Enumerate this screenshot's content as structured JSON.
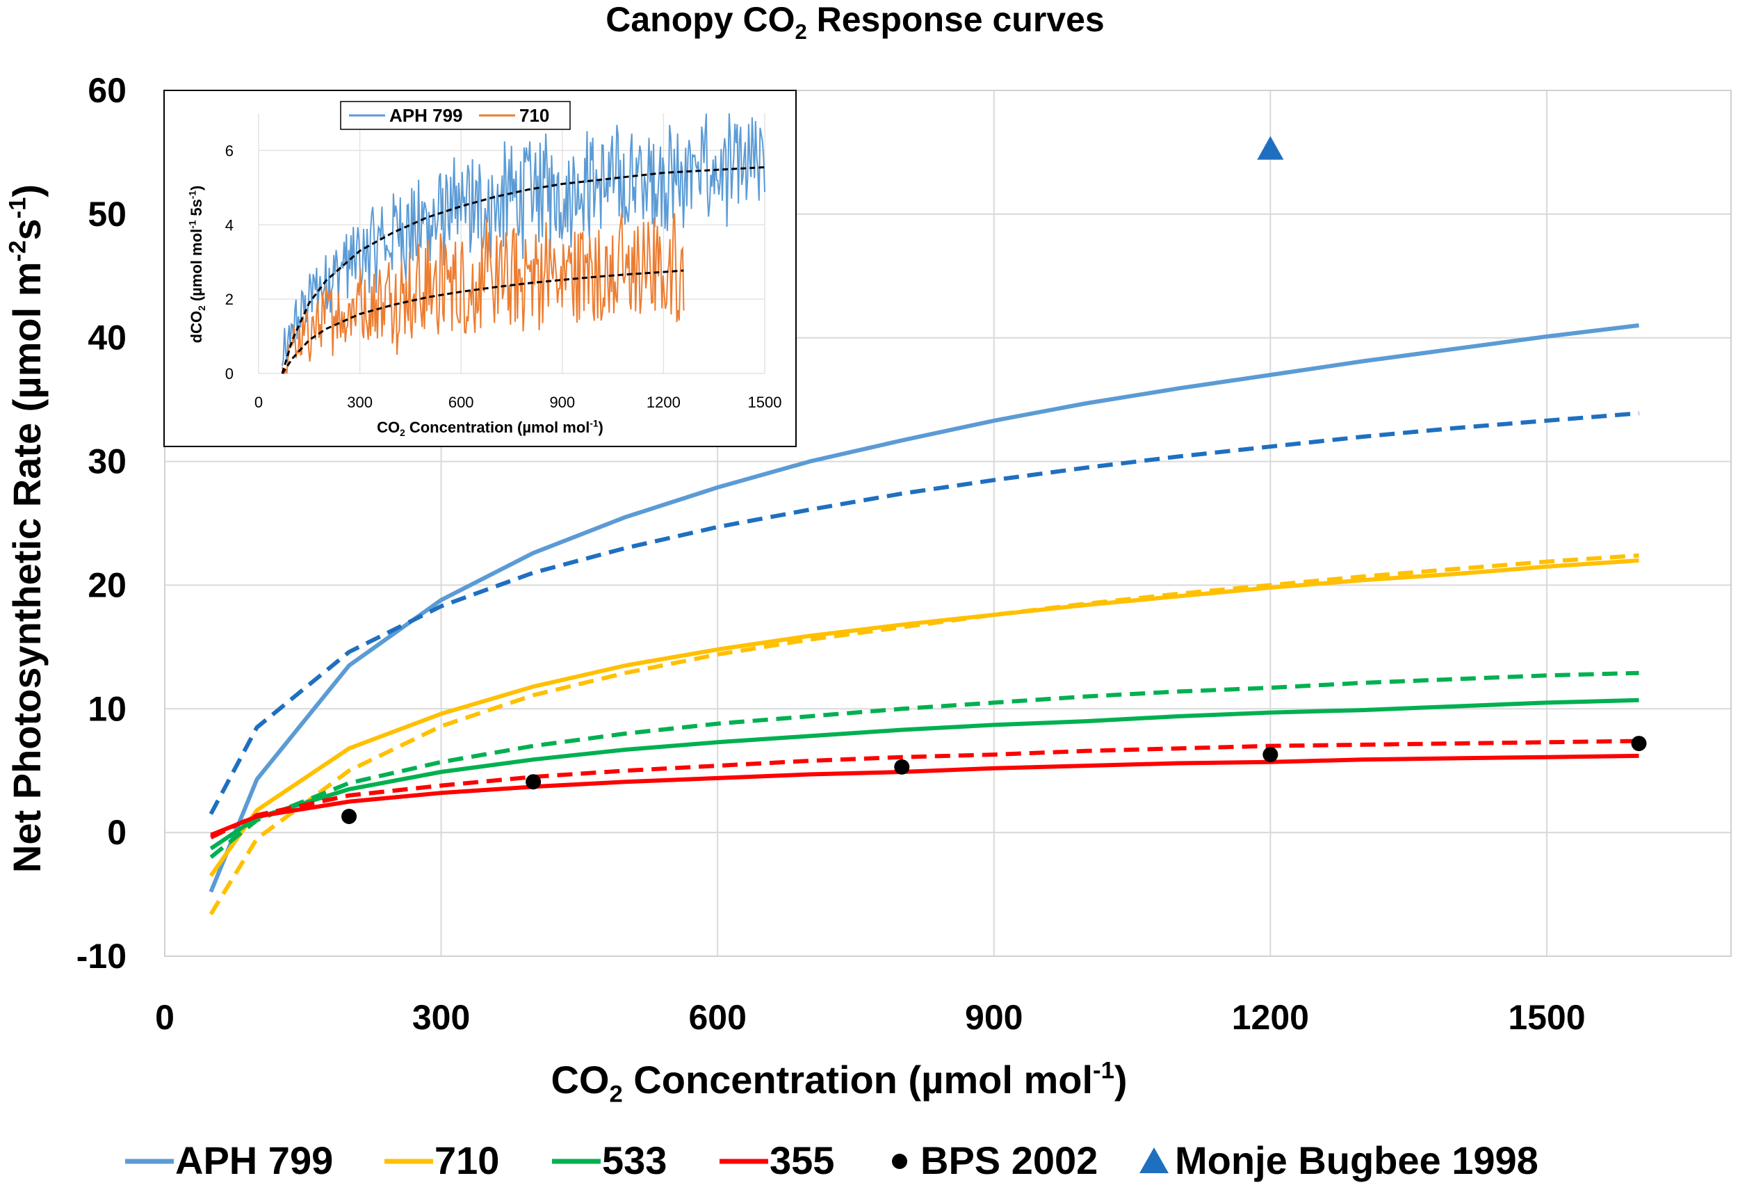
{
  "chart_data": [
    {
      "type": "line",
      "title": "Canopy CO₂ Response curves",
      "xlabel": "CO₂ Concentration (µmol mol⁻¹)",
      "ylabel": "Net Photosynthetic Rate (µmol m⁻²s⁻¹)",
      "xlim": [
        0,
        1700
      ],
      "ylim": [
        -10,
        60
      ],
      "xticks": [
        "0",
        "300",
        "600",
        "900",
        "1200",
        "1500"
      ],
      "yticks": [
        "-10",
        "0",
        "10",
        "20",
        "30",
        "40",
        "50",
        "60"
      ],
      "grid": true,
      "legend_position": "bottom",
      "series": [
        {
          "name": "APH 799",
          "style": "solid",
          "color": "#5b9bd5",
          "show_in_legend": true,
          "x": [
            50,
            100,
            200,
            300,
            400,
            500,
            600,
            700,
            800,
            900,
            1000,
            1100,
            1200,
            1300,
            1400,
            1500,
            1600
          ],
          "y": [
            -4.8,
            4.3,
            13.5,
            18.8,
            22.6,
            25.5,
            27.9,
            30.0,
            31.7,
            33.3,
            34.7,
            35.9,
            37.0,
            38.1,
            39.1,
            40.1,
            41.0
          ]
        },
        {
          "name": "APH 799 model",
          "style": "dashed",
          "color": "#1f6fc0",
          "show_in_legend": false,
          "x": [
            50,
            100,
            200,
            300,
            400,
            500,
            600,
            700,
            800,
            900,
            1000,
            1100,
            1200,
            1300,
            1400,
            1500,
            1600
          ],
          "y": [
            1.5,
            8.5,
            14.6,
            18.3,
            21.0,
            23.0,
            24.7,
            26.1,
            27.4,
            28.5,
            29.5,
            30.4,
            31.2,
            32.0,
            32.7,
            33.3,
            33.9
          ]
        },
        {
          "name": "710",
          "style": "solid",
          "color": "#ffc000",
          "show_in_legend": true,
          "x": [
            50,
            100,
            200,
            300,
            400,
            500,
            600,
            700,
            800,
            900,
            1000,
            1100,
            1200,
            1300,
            1400,
            1500,
            1600
          ],
          "y": [
            -3.5,
            1.8,
            6.8,
            9.6,
            11.8,
            13.5,
            14.8,
            15.9,
            16.8,
            17.6,
            18.4,
            19.1,
            19.8,
            20.4,
            20.9,
            21.5,
            22.0
          ]
        },
        {
          "name": "710 model",
          "style": "dashed",
          "color": "#ffc000",
          "show_in_legend": false,
          "x": [
            50,
            100,
            200,
            300,
            400,
            500,
            600,
            700,
            800,
            900,
            1000,
            1100,
            1200,
            1300,
            1400,
            1500,
            1600
          ],
          "y": [
            -6.6,
            -0.5,
            5.0,
            8.6,
            11.1,
            12.9,
            14.4,
            15.6,
            16.6,
            17.6,
            18.5,
            19.3,
            20.0,
            20.7,
            21.3,
            21.9,
            22.4
          ]
        },
        {
          "name": "533",
          "style": "solid",
          "color": "#00b050",
          "show_in_legend": true,
          "x": [
            50,
            100,
            200,
            300,
            400,
            500,
            600,
            700,
            800,
            900,
            1000,
            1100,
            1200,
            1300,
            1400,
            1500,
            1600
          ],
          "y": [
            -1.3,
            1.2,
            3.5,
            4.9,
            5.9,
            6.7,
            7.3,
            7.8,
            8.3,
            8.7,
            9.0,
            9.4,
            9.7,
            9.9,
            10.2,
            10.5,
            10.7
          ]
        },
        {
          "name": "533 model",
          "style": "dashed",
          "color": "#00b050",
          "show_in_legend": false,
          "x": [
            50,
            100,
            200,
            300,
            400,
            500,
            600,
            700,
            800,
            900,
            1000,
            1100,
            1200,
            1300,
            1400,
            1500,
            1600
          ],
          "y": [
            -2.0,
            1.0,
            4.0,
            5.7,
            7.0,
            8.0,
            8.8,
            9.4,
            10.0,
            10.5,
            11.0,
            11.4,
            11.7,
            12.1,
            12.4,
            12.7,
            12.9
          ]
        },
        {
          "name": "355",
          "style": "solid",
          "color": "#ff0000",
          "show_in_legend": true,
          "x": [
            50,
            100,
            200,
            300,
            400,
            500,
            600,
            700,
            800,
            900,
            1000,
            1100,
            1200,
            1300,
            1400,
            1500,
            1600
          ],
          "y": [
            -0.2,
            1.3,
            2.5,
            3.2,
            3.7,
            4.1,
            4.4,
            4.7,
            4.9,
            5.2,
            5.4,
            5.6,
            5.7,
            5.9,
            6.0,
            6.1,
            6.2
          ]
        },
        {
          "name": "355 model",
          "style": "dashed",
          "color": "#ff0000",
          "show_in_legend": false,
          "x": [
            50,
            100,
            200,
            300,
            400,
            500,
            600,
            700,
            800,
            900,
            1000,
            1100,
            1200,
            1300,
            1400,
            1500,
            1600
          ],
          "y": [
            -0.4,
            1.4,
            3.0,
            3.8,
            4.5,
            5.0,
            5.4,
            5.8,
            6.1,
            6.3,
            6.6,
            6.8,
            7.0,
            7.1,
            7.2,
            7.3,
            7.4
          ]
        }
      ],
      "markers": [
        {
          "name": "BPS 2002",
          "symbol": "circle",
          "color": "#000000",
          "x": [
            200,
            400,
            800,
            1200,
            1600
          ],
          "y": [
            1.3,
            4.1,
            5.3,
            6.3,
            7.2
          ]
        },
        {
          "name": "Monje Bugbee 1998",
          "symbol": "triangle",
          "color": "#1f6fc0",
          "x": [
            1200
          ],
          "y": [
            55.3
          ]
        }
      ]
    },
    {
      "type": "line",
      "title": "",
      "xlabel": "CO₂ Concentration (µmol mol⁻¹)",
      "ylabel": "dCO₂ (µmol mol⁻¹ 5s⁻¹)",
      "xlim": [
        0,
        1500
      ],
      "ylim": [
        0,
        7
      ],
      "xticks": [
        "0",
        "300",
        "600",
        "900",
        "1200",
        "1500"
      ],
      "yticks": [
        "0",
        "2",
        "4",
        "6"
      ],
      "legend_position": "top",
      "series": [
        {
          "name": "APH 799",
          "color": "#5b9bd5",
          "noise": true,
          "x": [
            70,
            100,
            150,
            200,
            300,
            400,
            500,
            600,
            700,
            800,
            900,
            1000,
            1100,
            1200,
            1300,
            1400,
            1500
          ],
          "y": [
            0.0,
            1.2,
            2.0,
            2.5,
            3.2,
            3.7,
            4.0,
            4.3,
            4.6,
            4.8,
            5.0,
            5.1,
            5.2,
            5.3,
            5.4,
            5.45,
            5.5
          ]
        },
        {
          "name": "710",
          "color": "#ed7d31",
          "noise": true,
          "x": [
            70,
            100,
            150,
            200,
            300,
            400,
            500,
            600,
            700,
            800,
            900,
            1000,
            1100,
            1200,
            1260
          ],
          "y": [
            0.0,
            0.6,
            1.1,
            1.5,
            1.9,
            2.1,
            2.3,
            2.4,
            2.5,
            2.6,
            2.7,
            2.75,
            2.8,
            2.85,
            2.9
          ]
        },
        {
          "name": "APH 799 fit",
          "color": "#000000",
          "dashed": true,
          "x": [
            70,
            100,
            150,
            200,
            300,
            400,
            500,
            600,
            700,
            800,
            900,
            1000,
            1100,
            1200,
            1300,
            1400,
            1500
          ],
          "y": [
            0.0,
            0.9,
            1.9,
            2.5,
            3.3,
            3.8,
            4.2,
            4.5,
            4.75,
            4.95,
            5.1,
            5.2,
            5.3,
            5.4,
            5.45,
            5.5,
            5.55
          ]
        },
        {
          "name": "710 fit",
          "color": "#000000",
          "dashed": true,
          "x": [
            70,
            100,
            150,
            200,
            300,
            400,
            500,
            600,
            700,
            800,
            900,
            1000,
            1100,
            1200,
            1260
          ],
          "y": [
            0.0,
            0.4,
            0.9,
            1.2,
            1.6,
            1.85,
            2.05,
            2.2,
            2.32,
            2.43,
            2.52,
            2.6,
            2.67,
            2.73,
            2.77
          ]
        }
      ]
    }
  ]
}
